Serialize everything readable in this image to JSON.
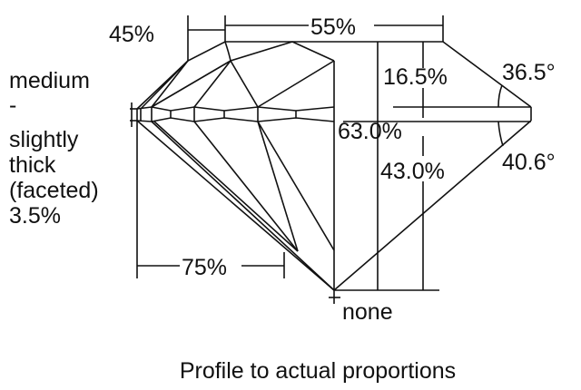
{
  "labels": {
    "crown_angle_width": "45%",
    "table": "55%",
    "crown_height": "16.5%",
    "crown_angle": "36.5°",
    "total_depth": "63.0%",
    "pavilion_depth": "43.0%",
    "pavilion_angle": "40.6°",
    "lower_half": "75%",
    "culet": "none",
    "girdle_lines": [
      "medium",
      "-",
      "slightly",
      "thick",
      "(faceted)",
      "3.5%"
    ]
  },
  "caption": "Profile to actual proportions",
  "colors": {
    "line": "#111111",
    "background": "#ffffff"
  }
}
